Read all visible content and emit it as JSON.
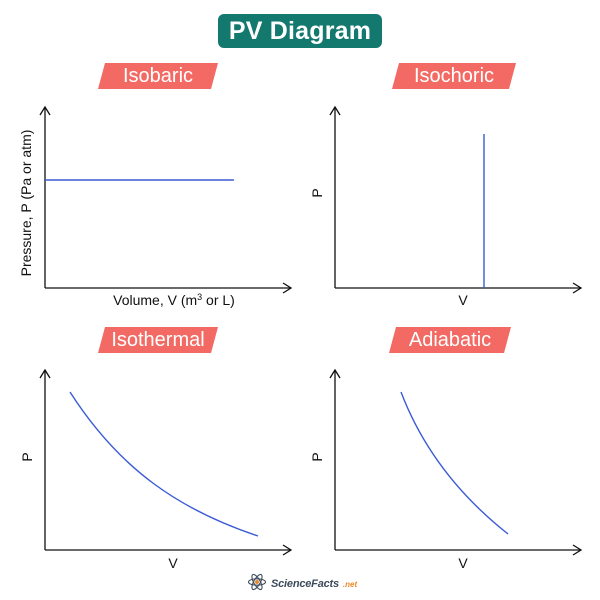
{
  "title": "PV Diagram",
  "colors": {
    "title_bg": "#13786e",
    "label_bg": "#f26a63",
    "curve": "#3b5bd6",
    "axis": "#111111"
  },
  "panels": [
    {
      "id": "isobaric",
      "label": "Isobaric",
      "ylabel": "Pressure, P (Pa or atm)",
      "xlabel_prefix": "Volume, V (m",
      "xlabel_sup": "3",
      "xlabel_suffix": " or L)"
    },
    {
      "id": "isochoric",
      "label": "Isochoric",
      "ylabel": "P",
      "xlabel": "V"
    },
    {
      "id": "isothermal",
      "label": "Isothermal",
      "ylabel": "P",
      "xlabel": "V"
    },
    {
      "id": "adiabatic",
      "label": "Adiabatic",
      "ylabel": "P",
      "xlabel": "V"
    }
  ],
  "footer": {
    "brand": "ScienceFacts",
    "suffix": ".net",
    "logo_icon": "atom-icon"
  }
}
